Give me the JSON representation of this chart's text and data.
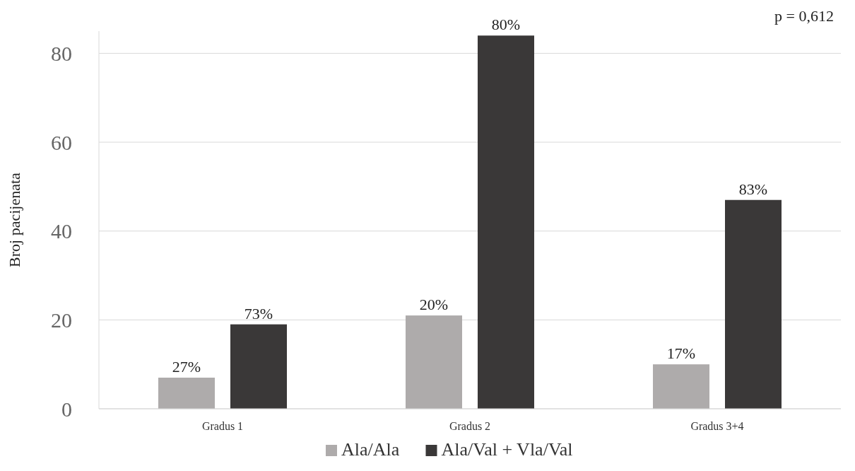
{
  "chart_data": {
    "type": "bar",
    "ylabel": "Broj pacijenata",
    "categories": [
      "Gradus 1",
      "Gradus 2",
      "Gradus 3+4"
    ],
    "series": [
      {
        "name": "Ala/Ala",
        "color": "#aeabab",
        "values": [
          7,
          21,
          10
        ]
      },
      {
        "name": "Ala/Val + Vla/Val",
        "color": "#3a3838",
        "values": [
          19,
          84,
          47
        ]
      }
    ],
    "ylim": [
      0,
      85
    ],
    "yticks": [
      0,
      20,
      40,
      60,
      80
    ],
    "grid": "y",
    "legend": "bottom",
    "annotations": [
      "p = 0,612",
      "27%",
      "73%",
      "20%",
      "80%",
      "17%",
      "83%"
    ]
  }
}
